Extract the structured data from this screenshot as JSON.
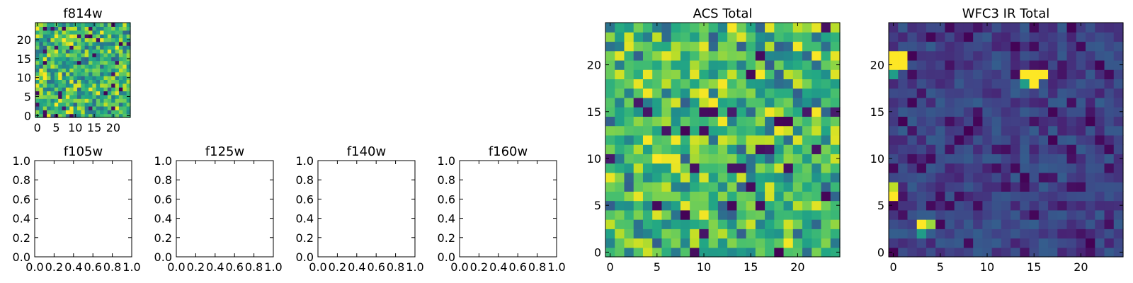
{
  "chart_data": [
    {
      "type": "heatmap",
      "title": "f814w",
      "xlabel": "",
      "ylabel": "",
      "xlim": [
        -0.5,
        24.5
      ],
      "ylim": [
        -0.5,
        24.5
      ],
      "x_ticks": [
        0,
        5,
        10,
        15,
        20
      ],
      "y_ticks": [
        0,
        5,
        10,
        15,
        20
      ],
      "grid_size": [
        25,
        25
      ],
      "colormap": "viridis",
      "value_range": [
        0,
        1
      ],
      "seed": 81,
      "style": "acs",
      "hotspots": []
    },
    {
      "type": "heatmap",
      "title": "f105w",
      "empty": true,
      "xlim": [
        0.0,
        1.0
      ],
      "ylim": [
        0.0,
        1.0
      ],
      "x_ticks": [
        "0.0",
        "0.2",
        "0.4",
        "0.6",
        "0.8",
        "1.0"
      ],
      "y_ticks": [
        "0.0",
        "0.2",
        "0.4",
        "0.6",
        "0.8",
        "1.0"
      ]
    },
    {
      "type": "heatmap",
      "title": "f125w",
      "empty": true,
      "xlim": [
        0.0,
        1.0
      ],
      "ylim": [
        0.0,
        1.0
      ],
      "x_ticks": [
        "0.0",
        "0.2",
        "0.4",
        "0.6",
        "0.8",
        "1.0"
      ],
      "y_ticks": [
        "0.0",
        "0.2",
        "0.4",
        "0.6",
        "0.8",
        "1.0"
      ]
    },
    {
      "type": "heatmap",
      "title": "f140w",
      "empty": true,
      "xlim": [
        0.0,
        1.0
      ],
      "ylim": [
        0.0,
        1.0
      ],
      "x_ticks": [
        "0.0",
        "0.2",
        "0.4",
        "0.6",
        "0.8",
        "1.0"
      ],
      "y_ticks": [
        "0.0",
        "0.2",
        "0.4",
        "0.6",
        "0.8",
        "1.0"
      ]
    },
    {
      "type": "heatmap",
      "title": "f160w",
      "empty": true,
      "xlim": [
        0.0,
        1.0
      ],
      "ylim": [
        0.0,
        1.0
      ],
      "x_ticks": [
        "0.0",
        "0.2",
        "0.4",
        "0.6",
        "0.8",
        "1.0"
      ],
      "y_ticks": [
        "0.0",
        "0.2",
        "0.4",
        "0.6",
        "0.8",
        "1.0"
      ]
    },
    {
      "type": "heatmap",
      "title": "ACS Total",
      "xlim": [
        -0.5,
        24.5
      ],
      "ylim": [
        -0.5,
        24.5
      ],
      "x_ticks": [
        0,
        5,
        10,
        15,
        20
      ],
      "y_ticks": [
        0,
        5,
        10,
        15,
        20
      ],
      "grid_size": [
        25,
        25
      ],
      "colormap": "viridis",
      "value_range": [
        0,
        1
      ],
      "seed": 42,
      "style": "acs",
      "hotspots": []
    },
    {
      "type": "heatmap",
      "title": "WFC3 IR Total",
      "xlim": [
        -0.5,
        24.5
      ],
      "ylim": [
        -0.5,
        24.5
      ],
      "x_ticks": [
        0,
        5,
        10,
        15,
        20
      ],
      "y_ticks": [
        0,
        5,
        10,
        15,
        20
      ],
      "grid_size": [
        25,
        25
      ],
      "colormap": "viridis",
      "value_range": [
        0,
        1
      ],
      "seed": 7,
      "style": "ir",
      "hotspots": [
        {
          "x": 0,
          "y": 21,
          "v": 1.0
        },
        {
          "x": 1,
          "y": 21,
          "v": 1.0
        },
        {
          "x": 0,
          "y": 20,
          "v": 1.0
        },
        {
          "x": 1,
          "y": 20,
          "v": 1.0
        },
        {
          "x": 0,
          "y": 19,
          "v": 0.55
        },
        {
          "x": 14,
          "y": 19,
          "v": 1.0
        },
        {
          "x": 15,
          "y": 19,
          "v": 1.0
        },
        {
          "x": 16,
          "y": 19,
          "v": 1.0
        },
        {
          "x": 14,
          "y": 18,
          "v": 0.55
        },
        {
          "x": 15,
          "y": 18,
          "v": 1.0
        },
        {
          "x": 0,
          "y": 7,
          "v": 0.9
        },
        {
          "x": 0,
          "y": 6,
          "v": 1.0
        },
        {
          "x": 3,
          "y": 3,
          "v": 1.0
        },
        {
          "x": 4,
          "y": 3,
          "v": 0.85
        },
        {
          "x": 3,
          "y": 2,
          "v": 0.55
        }
      ]
    }
  ]
}
